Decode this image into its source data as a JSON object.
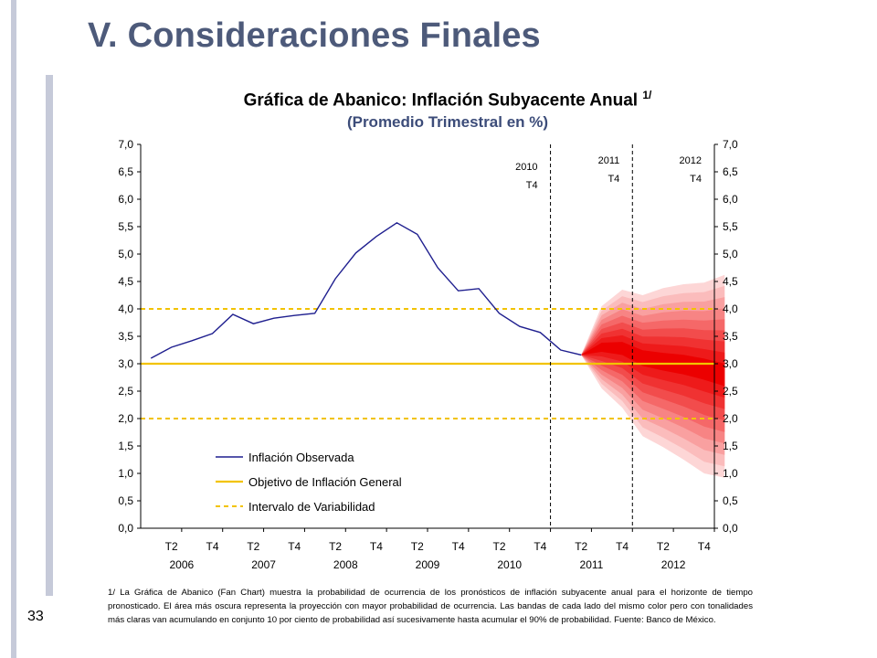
{
  "slide": {
    "title": "V. Consideraciones Finales",
    "page_number": "33",
    "footnote": "1/ La Gráfica de Abanico (Fan Chart) muestra la probabilidad de ocurrencia de los pronósticos de inflación subyacente anual para el horizonte de tiempo pronosticado. El área más oscura representa la proyección con mayor probabilidad de ocurrencia. Las bandas de cada lado del mismo color pero con tonalidades más claras van acumulando en conjunto 10 por ciento de probabilidad así sucesivamente hasta acumular el 90% de probabilidad. Fuente: Banco de México."
  },
  "colors": {
    "title": "#4d5a7a",
    "subtitle": "#3c4c79",
    "observed_line": "#1f1f8f",
    "target_line": "#f2c300",
    "fan_bands": [
      "#fdd6d6",
      "#fbbcbc",
      "#f9a0a0",
      "#f78484",
      "#f56868",
      "#f24c4c",
      "#f03232",
      "#ee1a1a",
      "#ec0000"
    ]
  },
  "chart_data": {
    "type": "line",
    "title": "Gráfica de Abanico: Inflación Subyacente Anual",
    "title_sup": "1/",
    "subtitle": "(Promedio Trimestral en %)",
    "ylim": [
      0,
      7
    ],
    "yticks": [
      "0,0",
      "0,5",
      "1,0",
      "1,5",
      "2,0",
      "2,5",
      "3,0",
      "3,5",
      "4,0",
      "4,5",
      "5,0",
      "5,5",
      "6,0",
      "6,5",
      "7,0"
    ],
    "quarter_tick_labels": [
      "T2",
      "T4",
      "T2",
      "T4",
      "T2",
      "T4",
      "T2",
      "T4",
      "T2",
      "T4",
      "T2",
      "T4",
      "T2",
      "T4"
    ],
    "year_labels": [
      "2006",
      "2007",
      "2008",
      "2009",
      "2010",
      "2011",
      "2012"
    ],
    "grid": false,
    "legend_position": "bottom-left",
    "vertical_markers": [
      {
        "label": "2010 T4",
        "line1": "2010",
        "line2": "T4",
        "quarter_index": 19
      },
      {
        "label": "2011 T4",
        "line1": "2011",
        "line2": "T4",
        "quarter_index": 23
      },
      {
        "label": "2012 T4",
        "line1": "2012",
        "line2": "T4",
        "quarter_index": 27
      }
    ],
    "series": [
      {
        "name": "Inflación Observada",
        "style": "solid",
        "values": [
          3.1,
          3.3,
          3.42,
          3.55,
          3.9,
          3.73,
          3.83,
          3.88,
          3.92,
          4.55,
          5.02,
          5.32,
          5.57,
          5.36,
          4.75,
          4.33,
          4.37,
          3.92,
          3.68,
          3.57,
          3.25,
          3.16
        ]
      },
      {
        "name": "Objetivo de Inflación General",
        "style": "solid",
        "value": 3.0
      },
      {
        "name": "Intervalo de Variabilidad",
        "style": "dashed",
        "values": [
          2.0,
          4.0
        ]
      }
    ],
    "fan": {
      "start_quarter_index": 21,
      "start_value": 3.16,
      "center": [
        3.16,
        3.3,
        3.28,
        3.12,
        3.05,
        3.0,
        2.92,
        2.8
      ],
      "upper_90": [
        3.16,
        4.05,
        4.35,
        4.25,
        4.38,
        4.45,
        4.48,
        4.62
      ],
      "lower_90": [
        3.16,
        2.55,
        2.2,
        1.68,
        1.48,
        1.25,
        1.0,
        0.92
      ]
    }
  }
}
